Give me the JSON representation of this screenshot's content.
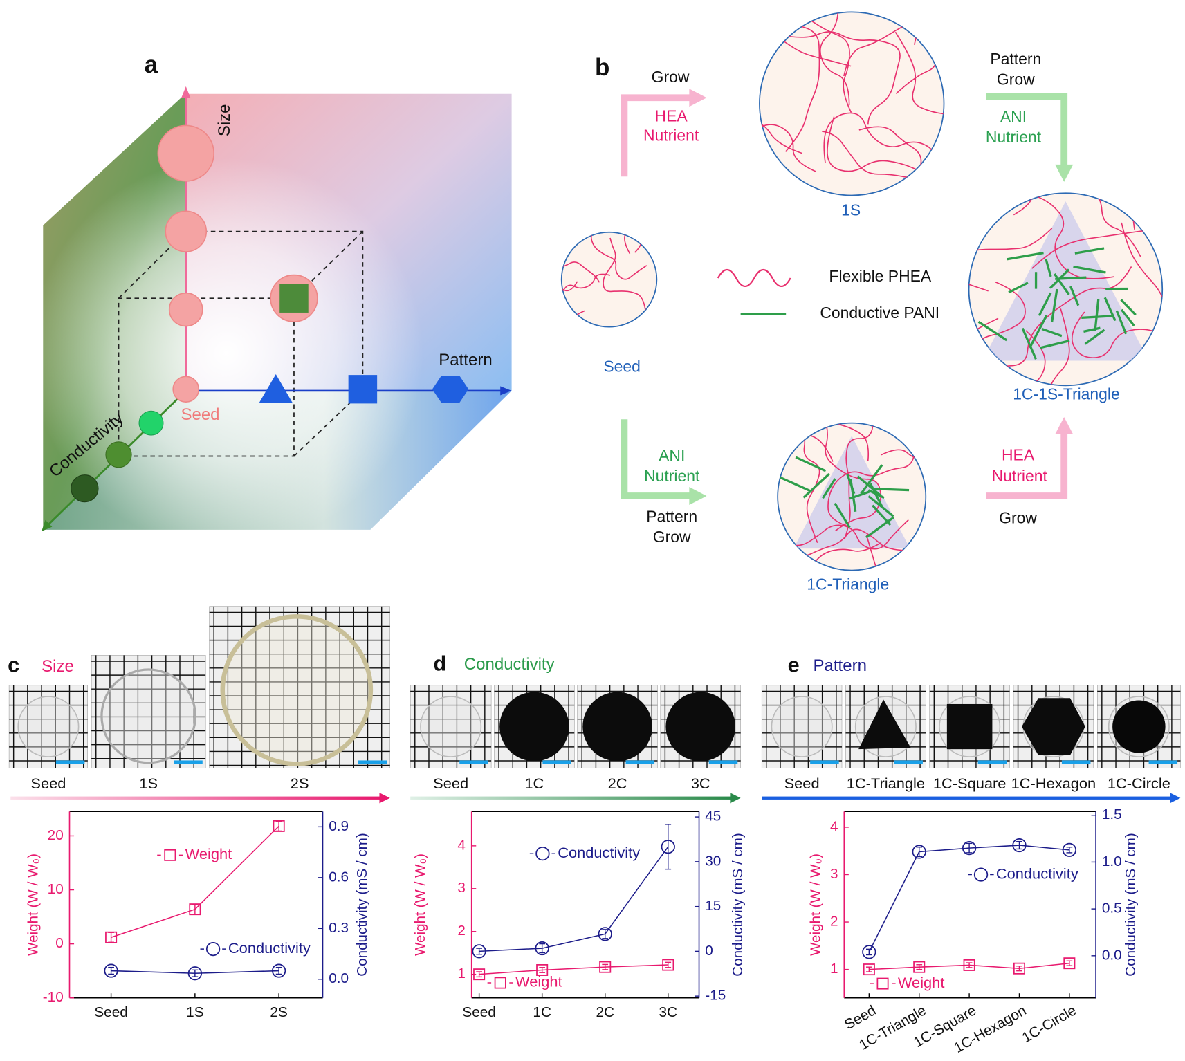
{
  "panel_a": {
    "label": "a",
    "size_axis": "Size",
    "pattern_axis": "Pattern",
    "conductivity_axis": "Conductivity",
    "seed": "Seed"
  },
  "panel_b": {
    "label": "b",
    "grow_1": "Grow",
    "hea_1": "HEA",
    "nutrient_1": "Nutrient",
    "pattern_1": "Pattern",
    "grow_2": "Grow",
    "ani_1": "ANI",
    "nutrient_2": "Nutrient",
    "node_1s": "1S",
    "node_seed": "Seed",
    "legend_phea": "Flexible PHEA",
    "legend_pani": "Conductive PANI",
    "node_1c1s": "1C-1S-Triangle",
    "ani_2": "ANI",
    "nutrient_3": "Nutrient",
    "pattern_2": "Pattern",
    "grow_3": "Grow",
    "node_1c": "1C-Triangle",
    "hea_2": "HEA",
    "nutrient_4": "Nutrient",
    "grow_4": "Grow"
  },
  "photo_strips": [
    [
      "Seed",
      "1S",
      "2S"
    ],
    [
      "Seed",
      "1C",
      "2C",
      "3C"
    ],
    [
      "Seed",
      "1C-Triangle",
      "1C-Square",
      "1C-Hexagon",
      "1C-Circle"
    ]
  ],
  "chart_data": [
    {
      "type": "line",
      "label": "c",
      "title": "Size",
      "title_color": "#e8196e",
      "categories": [
        "Seed",
        "1S",
        "2S"
      ],
      "ylabel": "Weight (W / W₀)",
      "y2label": "Conductivity (mS / cm)",
      "ylim": [
        -10,
        24.5
      ],
      "yticks": [
        -10,
        0,
        10,
        20
      ],
      "y2lim": [
        -0.11,
        0.99
      ],
      "y2ticks": [
        {
          "value": 0,
          "label": "0.0"
        },
        0.3,
        0.6,
        0.9
      ],
      "series": [
        {
          "name": "Weight",
          "color": "#e8196e",
          "marker": "square",
          "values": [
            1.2,
            6.4,
            21.8
          ],
          "errors": [
            0.9,
            0.9,
            0.9
          ]
        },
        {
          "name": "Conductivity",
          "color": "#1c1c8a",
          "marker": "circle",
          "axis": "y2",
          "values": [
            0.05,
            0.035,
            0.05
          ],
          "errors": [
            0.02,
            0.02,
            0.02
          ]
        }
      ]
    },
    {
      "type": "line",
      "label": "d",
      "title": "Conductivity",
      "title_color": "#2a9a4a",
      "categories": [
        "Seed",
        "1C",
        "2C",
        "3C"
      ],
      "ylabel": "Weight (W / W₀)",
      "y2label": "Conductivity (mS / cm)",
      "ylim": [
        0.45,
        4.8
      ],
      "yticks": [
        1,
        2,
        3,
        4
      ],
      "y2lim": [
        -15.6,
        46.8
      ],
      "y2ticks": [
        -15,
        0,
        15,
        30,
        45
      ],
      "series": [
        {
          "name": "Weight",
          "color": "#e8196e",
          "marker": "square",
          "values": [
            1.0,
            1.1,
            1.17,
            1.22
          ],
          "errors": [
            0.06,
            0.06,
            0.06,
            0.06
          ]
        },
        {
          "name": "Conductivity",
          "color": "#1c1c8a",
          "marker": "circle",
          "axis": "y2",
          "values": [
            0,
            1,
            5.8,
            35
          ],
          "errors": [
            1,
            1.5,
            1.5,
            7.5
          ]
        }
      ]
    },
    {
      "type": "line",
      "label": "e",
      "title": "Pattern",
      "title_color": "#1c1c8a",
      "categories": [
        "Seed",
        "1C-Triangle",
        "1C-Square",
        "1C-Hexagon",
        "1C-Circle"
      ],
      "ylabel": "Weight (W / W₀)",
      "y2label": "Conductivity (mS / cm)",
      "ylim": [
        0.4,
        4.33
      ],
      "yticks": [
        1,
        2,
        3,
        4
      ],
      "y2lim": [
        -0.45,
        1.54
      ],
      "y2ticks": [
        {
          "value": 0,
          "label": "0.0"
        },
        0.5,
        {
          "value": 1,
          "label": "1.0"
        },
        1.5
      ],
      "series": [
        {
          "name": "Weight",
          "color": "#e8196e",
          "marker": "square",
          "values": [
            1.0,
            1.05,
            1.09,
            1.02,
            1.13
          ],
          "errors": [
            0.05,
            0.05,
            0.05,
            0.05,
            0.05
          ]
        },
        {
          "name": "Conductivity",
          "color": "#1c1c8a",
          "marker": "circle",
          "axis": "y2",
          "values": [
            0.04,
            1.11,
            1.15,
            1.18,
            1.13
          ],
          "errors": [
            0.03,
            0.05,
            0.05,
            0.04,
            0.03
          ]
        }
      ]
    }
  ]
}
